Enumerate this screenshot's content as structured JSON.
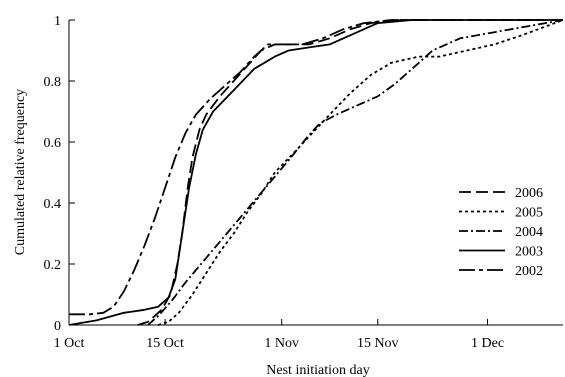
{
  "chart_data": {
    "type": "line",
    "title": "",
    "xlabel": "Nest initiation day",
    "ylabel": "Cumulated relative frequency",
    "xlim": [
      0,
      72
    ],
    "x_ticks": [
      {
        "label": "1 Oct",
        "value": 0
      },
      {
        "label": "15 Oct",
        "value": 14
      },
      {
        "label": "1 Nov",
        "value": 31
      },
      {
        "label": "15 Nov",
        "value": 45
      },
      {
        "label": "1 Dec",
        "value": 61
      }
    ],
    "x_minor_ticks": [
      14,
      31,
      45,
      61
    ],
    "ylim": [
      0,
      1
    ],
    "y_ticks": [
      {
        "label": "0",
        "value": 0
      },
      {
        "label": "0.2",
        "value": 0.2
      },
      {
        "label": "0.4",
        "value": 0.4
      },
      {
        "label": "0.6",
        "value": 0.6
      },
      {
        "label": "0.8",
        "value": 0.8
      },
      {
        "label": "1",
        "value": 1
      }
    ],
    "grid": false,
    "legend_position": "bottom-right",
    "series": [
      {
        "name": "2006",
        "dash": "long-dash",
        "points": [
          [
            10,
            0
          ],
          [
            11.5,
            0.01
          ],
          [
            12.5,
            0.03
          ],
          [
            13.5,
            0.05
          ],
          [
            14.8,
            0.1
          ],
          [
            15.8,
            0.2
          ],
          [
            16.5,
            0.3
          ],
          [
            17.3,
            0.45
          ],
          [
            18,
            0.55
          ],
          [
            19,
            0.64
          ],
          [
            20,
            0.69
          ],
          [
            22,
            0.75
          ],
          [
            24,
            0.8
          ],
          [
            26,
            0.85
          ],
          [
            28,
            0.9
          ],
          [
            30,
            0.92
          ],
          [
            32,
            0.92
          ],
          [
            35,
            0.92
          ],
          [
            38,
            0.94
          ],
          [
            41,
            0.97
          ],
          [
            44,
            0.99
          ],
          [
            47,
            1
          ],
          [
            72,
            1
          ]
        ]
      },
      {
        "name": "2005",
        "dash": "dotted",
        "points": [
          [
            13,
            0
          ],
          [
            14.5,
            0.01
          ],
          [
            16,
            0.04
          ],
          [
            18,
            0.1
          ],
          [
            20,
            0.17
          ],
          [
            22,
            0.24
          ],
          [
            24,
            0.3
          ],
          [
            26,
            0.37
          ],
          [
            28,
            0.43
          ],
          [
            30,
            0.5
          ],
          [
            33,
            0.57
          ],
          [
            35.5,
            0.63
          ],
          [
            38,
            0.69
          ],
          [
            41,
            0.76
          ],
          [
            44,
            0.82
          ],
          [
            47,
            0.86
          ],
          [
            51,
            0.88
          ],
          [
            54,
            0.88
          ],
          [
            58,
            0.9
          ],
          [
            62,
            0.92
          ],
          [
            66,
            0.95
          ],
          [
            72,
            1
          ]
        ]
      },
      {
        "name": "2004",
        "dash": "dash-dot",
        "points": [
          [
            11.5,
            0
          ],
          [
            13,
            0.03
          ],
          [
            15,
            0.08
          ],
          [
            17,
            0.14
          ],
          [
            20,
            0.22
          ],
          [
            23,
            0.3
          ],
          [
            26,
            0.38
          ],
          [
            29,
            0.46
          ],
          [
            32,
            0.54
          ],
          [
            34.5,
            0.61
          ],
          [
            36.5,
            0.66
          ],
          [
            39,
            0.69
          ],
          [
            42,
            0.72
          ],
          [
            45,
            0.75
          ],
          [
            47.5,
            0.79
          ],
          [
            50,
            0.84
          ],
          [
            53,
            0.9
          ],
          [
            57,
            0.94
          ],
          [
            62,
            0.96
          ],
          [
            67,
            0.98
          ],
          [
            72,
            1
          ]
        ]
      },
      {
        "name": "2003",
        "dash": "solid",
        "points": [
          [
            0,
            0
          ],
          [
            4,
            0.015
          ],
          [
            8,
            0.04
          ],
          [
            11,
            0.05
          ],
          [
            13,
            0.06
          ],
          [
            14.5,
            0.09
          ],
          [
            15.5,
            0.15
          ],
          [
            16.5,
            0.3
          ],
          [
            17.5,
            0.45
          ],
          [
            18.5,
            0.56
          ],
          [
            19.5,
            0.64
          ],
          [
            21,
            0.7
          ],
          [
            24,
            0.77
          ],
          [
            27,
            0.84
          ],
          [
            30,
            0.88
          ],
          [
            32,
            0.9
          ],
          [
            35,
            0.91
          ],
          [
            38,
            0.92
          ],
          [
            42,
            0.96
          ],
          [
            45,
            0.99
          ],
          [
            50,
            1
          ],
          [
            72,
            1
          ]
        ]
      },
      {
        "name": "2002",
        "dash": "long-dash-dot",
        "points": [
          [
            0,
            0.035
          ],
          [
            3,
            0.035
          ],
          [
            5,
            0.04
          ],
          [
            6.5,
            0.06
          ],
          [
            8,
            0.11
          ],
          [
            9.5,
            0.18
          ],
          [
            11,
            0.26
          ],
          [
            12.5,
            0.35
          ],
          [
            14,
            0.45
          ],
          [
            15.5,
            0.55
          ],
          [
            17,
            0.63
          ],
          [
            18.5,
            0.69
          ],
          [
            20.5,
            0.74
          ],
          [
            23,
            0.79
          ],
          [
            25,
            0.83
          ],
          [
            27,
            0.88
          ],
          [
            29,
            0.92
          ],
          [
            31,
            0.92
          ],
          [
            34,
            0.92
          ],
          [
            37,
            0.94
          ],
          [
            40,
            0.97
          ],
          [
            43,
            0.99
          ],
          [
            47,
            1
          ],
          [
            72,
            1
          ]
        ]
      }
    ]
  }
}
